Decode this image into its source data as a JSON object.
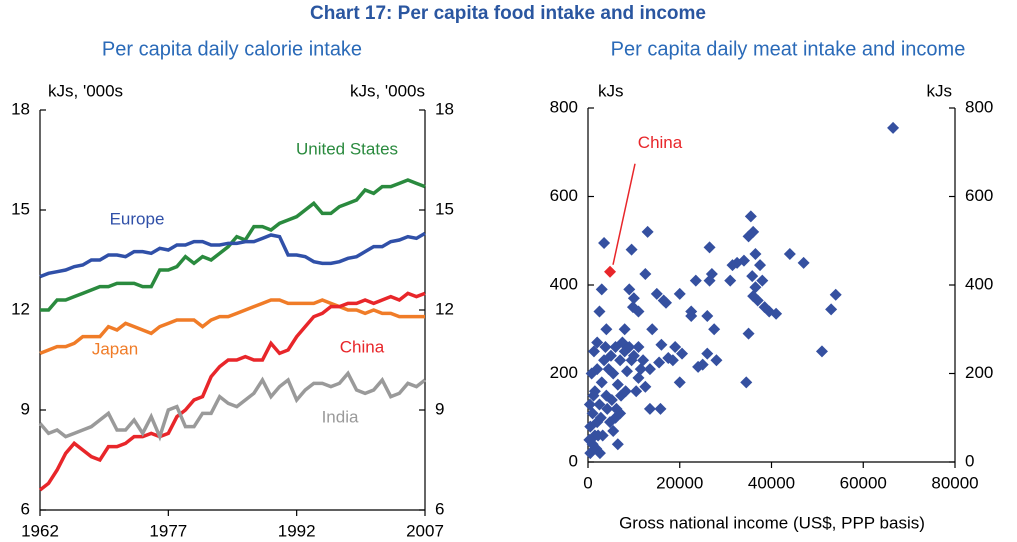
{
  "title": "Chart 17: Per capita food intake and income",
  "chart_data": [
    {
      "type": "line",
      "subtitle": "Per capita daily calorie intake",
      "ylabel": "kJs, '000s",
      "y2label": "kJs, '000s",
      "x": [
        1962,
        1963,
        1964,
        1965,
        1966,
        1967,
        1968,
        1969,
        1970,
        1971,
        1972,
        1973,
        1974,
        1975,
        1976,
        1977,
        1978,
        1979,
        1980,
        1981,
        1982,
        1983,
        1984,
        1985,
        1986,
        1987,
        1988,
        1989,
        1990,
        1991,
        1992,
        1993,
        1994,
        1995,
        1996,
        1997,
        1998,
        1999,
        2000,
        2001,
        2002,
        2003,
        2004,
        2005,
        2006,
        2007
      ],
      "xlim": [
        1962,
        2007
      ],
      "xticks": [
        1962,
        1977,
        1992,
        2007
      ],
      "ylim": [
        6,
        18
      ],
      "yticks": [
        6,
        9,
        12,
        15,
        18
      ],
      "y2lim": [
        6,
        18
      ],
      "y2ticks": [
        6,
        9,
        12,
        15,
        18
      ],
      "series": [
        {
          "name": "United States",
          "color": "#2a8a3e",
          "values": [
            12.0,
            12.0,
            12.3,
            12.3,
            12.4,
            12.5,
            12.6,
            12.7,
            12.7,
            12.8,
            12.8,
            12.8,
            12.7,
            12.7,
            13.2,
            13.2,
            13.3,
            13.6,
            13.4,
            13.6,
            13.5,
            13.7,
            13.9,
            14.2,
            14.1,
            14.5,
            14.5,
            14.4,
            14.6,
            14.7,
            14.8,
            15.0,
            15.2,
            14.9,
            14.9,
            15.1,
            15.2,
            15.3,
            15.6,
            15.5,
            15.7,
            15.7,
            15.8,
            15.9,
            15.8,
            15.7
          ]
        },
        {
          "name": "Europe",
          "color": "#3050a8",
          "values": [
            13.0,
            13.1,
            13.15,
            13.2,
            13.3,
            13.35,
            13.5,
            13.5,
            13.65,
            13.65,
            13.6,
            13.75,
            13.75,
            13.7,
            13.85,
            13.8,
            13.95,
            13.95,
            14.05,
            14.05,
            13.95,
            13.95,
            14.0,
            14.0,
            14.05,
            14.05,
            14.15,
            14.25,
            14.2,
            13.65,
            13.65,
            13.6,
            13.45,
            13.4,
            13.4,
            13.45,
            13.55,
            13.6,
            13.75,
            13.9,
            13.9,
            14.05,
            14.1,
            14.2,
            14.15,
            14.3
          ]
        },
        {
          "name": "Japan",
          "color": "#f07c28",
          "values": [
            10.7,
            10.8,
            10.9,
            10.9,
            11.0,
            11.2,
            11.2,
            11.2,
            11.5,
            11.4,
            11.6,
            11.5,
            11.4,
            11.3,
            11.5,
            11.6,
            11.7,
            11.7,
            11.7,
            11.5,
            11.7,
            11.8,
            11.8,
            11.9,
            12.0,
            12.1,
            12.2,
            12.3,
            12.3,
            12.2,
            12.2,
            12.2,
            12.2,
            12.3,
            12.2,
            12.1,
            12.0,
            12.0,
            11.9,
            12.0,
            11.9,
            11.9,
            11.8,
            11.8,
            11.8,
            11.8
          ]
        },
        {
          "name": "China",
          "color": "#e8262a",
          "values": [
            6.6,
            6.8,
            7.2,
            7.7,
            8.0,
            7.8,
            7.6,
            7.5,
            7.9,
            7.9,
            8.0,
            8.2,
            8.2,
            8.3,
            8.2,
            8.3,
            8.8,
            9.0,
            9.3,
            9.4,
            10.0,
            10.3,
            10.5,
            10.5,
            10.6,
            10.5,
            10.5,
            11.0,
            10.7,
            10.8,
            11.2,
            11.5,
            11.8,
            11.9,
            12.1,
            12.1,
            12.2,
            12.2,
            12.3,
            12.2,
            12.3,
            12.4,
            12.3,
            12.5,
            12.4,
            12.5
          ]
        },
        {
          "name": "India",
          "color": "#9a9a9a",
          "values": [
            8.6,
            8.3,
            8.4,
            8.2,
            8.3,
            8.4,
            8.5,
            8.7,
            8.9,
            8.4,
            8.4,
            8.7,
            8.3,
            8.8,
            8.2,
            9.0,
            9.1,
            8.5,
            8.5,
            8.9,
            8.9,
            9.4,
            9.2,
            9.1,
            9.3,
            9.5,
            9.9,
            9.4,
            9.7,
            9.9,
            9.3,
            9.6,
            9.8,
            9.8,
            9.7,
            9.8,
            10.1,
            9.6,
            9.5,
            9.6,
            9.9,
            9.4,
            9.5,
            9.8,
            9.7,
            9.9
          ]
        }
      ]
    },
    {
      "type": "scatter",
      "subtitle": "Per capita daily meat intake and income",
      "ylabel": "kJs",
      "y2label": "kJs",
      "xlabel": "Gross national income (US$, PPP  basis)",
      "xlim": [
        0,
        80000
      ],
      "xticks": [
        0,
        20000,
        40000,
        60000,
        80000
      ],
      "ylim": [
        0,
        800
      ],
      "yticks": [
        0,
        200,
        400,
        600,
        800
      ],
      "y2lim": [
        0,
        800
      ],
      "y2ticks": [
        0,
        200,
        400,
        600,
        800
      ],
      "series": [
        {
          "color": "#3550a0",
          "x": [
            66500,
            35500,
            35000,
            36000,
            36500,
            37500,
            35800,
            38000,
            36500,
            37000,
            36000,
            39500,
            41000,
            38500,
            35000,
            34500,
            32500,
            31500,
            31000,
            34000,
            44000,
            47000,
            54000,
            53000,
            51000,
            26500,
            27000,
            26500,
            27500,
            26000,
            26000,
            23500,
            22500,
            22500,
            24000,
            25000,
            20000,
            19000,
            20500,
            17000,
            16500,
            15000,
            16000,
            15500,
            17500,
            14000,
            13500,
            13000,
            12500,
            11000,
            10500,
            10000,
            9500,
            9000,
            9500,
            8500,
            8000,
            7500,
            7000,
            6500,
            6000,
            6000,
            5500,
            5000,
            4500,
            4000,
            3500,
            3000,
            3500,
            3000,
            2500,
            2500,
            2000,
            2000,
            1500,
            1500,
            1000,
            1000,
            500,
            500,
            800,
            1200,
            2200,
            2800,
            3200,
            1800,
            2600,
            4200,
            4800,
            5200,
            6200,
            7200,
            8200,
            9000,
            10000,
            11500,
            12000,
            13500,
            11000,
            5500,
            6500,
            7000,
            300,
            400,
            1300,
            2000,
            4000,
            3800,
            8000,
            9800,
            11000,
            12500,
            15800,
            18500,
            20000,
            28000
          ],
          "values": [
            755,
            555,
            510,
            520,
            470,
            445,
            420,
            410,
            395,
            365,
            375,
            340,
            335,
            350,
            290,
            180,
            450,
            445,
            410,
            455,
            470,
            450,
            378,
            345,
            250,
            485,
            425,
            410,
            300,
            330,
            245,
            410,
            340,
            330,
            215,
            220,
            380,
            260,
            245,
            360,
            365,
            380,
            265,
            225,
            235,
            300,
            120,
            520,
            425,
            340,
            160,
            370,
            480,
            390,
            230,
            205,
            250,
            270,
            230,
            175,
            260,
            100,
            200,
            240,
            210,
            150,
            495,
            390,
            230,
            180,
            340,
            130,
            210,
            90,
            160,
            60,
            110,
            40,
            80,
            20,
            200,
            150,
            60,
            100,
            60,
            30,
            20,
            120,
            90,
            140,
            120,
            150,
            160,
            260,
            240,
            210,
            230,
            210,
            190,
            70,
            40,
            110,
            50,
            130,
            250,
            270,
            300,
            260,
            300,
            350,
            260,
            170,
            120,
            230,
            180,
            230
          ]
        },
        {
          "name": "China",
          "color": "#e8262a",
          "x": [
            4800
          ],
          "values": [
            430
          ]
        }
      ]
    }
  ]
}
